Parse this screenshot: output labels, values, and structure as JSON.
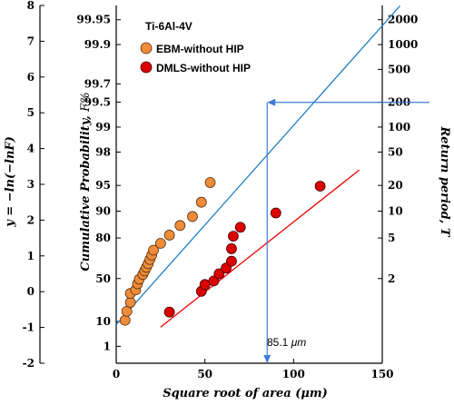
{
  "chart_data": {
    "type": "scatter",
    "title": "",
    "legend_title": "Ti-6Al-4V",
    "legend_placement": "top-left",
    "xlabel_main": "Square root of area (",
    "xlabel_unit": "μm",
    "xlabel_close": ")",
    "xlim": [
      0,
      150
    ],
    "x_ticks": [
      "0",
      "50",
      "100",
      "150"
    ],
    "ylabel_y_prefix": "y = −ln(−lnF",
    "ylabel_y_close": ")",
    "ylim": [
      -2,
      8
    ],
    "y_ticks": [
      "-2",
      "-1",
      "0",
      "1",
      "2",
      "3",
      "4",
      "5",
      "6",
      "7",
      "8"
    ],
    "ylabel_prob": "Cumulative Probability,",
    "ylabel_prob_var": "F%",
    "prob_ticks": [
      "1",
      "10",
      "50",
      "80",
      "90",
      "95",
      "98",
      "99",
      "99.5",
      "99.7",
      "99.9",
      "99.95"
    ],
    "ylabel_right": "Return period,",
    "ylabel_right_var": "T",
    "return_ticks": [
      "2",
      "5",
      "10",
      "20",
      "50",
      "100",
      "200",
      "500",
      "1000",
      "2000"
    ],
    "series": [
      {
        "name": "EBM-without HIP",
        "color": "#ee8c3a",
        "points": [
          [
            5,
            -0.8
          ],
          [
            6,
            -0.55
          ],
          [
            8,
            -0.3
          ],
          [
            8,
            -0.05
          ],
          [
            11,
            0.05
          ],
          [
            12,
            0.22
          ],
          [
            13,
            0.35
          ],
          [
            15,
            0.48
          ],
          [
            16,
            0.58
          ],
          [
            17,
            0.68
          ],
          [
            18,
            0.78
          ],
          [
            19,
            0.9
          ],
          [
            20,
            1.02
          ],
          [
            21,
            1.16
          ],
          [
            25,
            1.35
          ],
          [
            30,
            1.58
          ],
          [
            36,
            1.85
          ],
          [
            43,
            2.1
          ],
          [
            48,
            2.5
          ],
          [
            53,
            3.05
          ]
        ],
        "fit": [
          [
            0,
            -0.92
          ],
          [
            160,
            7.99
          ]
        ]
      },
      {
        "name": "DMLS-without HIP",
        "color": "#dd0000",
        "points": [
          [
            30,
            -0.57
          ],
          [
            48,
            0.01
          ],
          [
            50,
            0.2
          ],
          [
            55,
            0.3
          ],
          [
            58,
            0.5
          ],
          [
            62,
            0.66
          ],
          [
            65,
            0.85
          ],
          [
            65,
            1.2
          ],
          [
            66,
            1.55
          ],
          [
            70,
            1.8
          ],
          [
            90,
            2.2
          ],
          [
            115,
            2.95
          ]
        ],
        "fit": [
          [
            25,
            -0.99
          ],
          [
            137,
            3.4
          ]
        ]
      }
    ],
    "annotation": {
      "value": "85.1",
      "unit": "μm",
      "x": 85.1,
      "y": 5.29
    }
  }
}
